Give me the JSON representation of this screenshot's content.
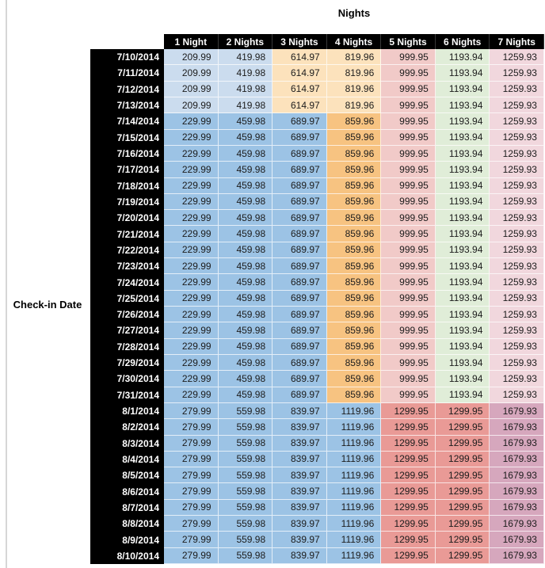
{
  "title": "Nights",
  "row_axis_label": "Check-in Date",
  "columns": [
    "1 Night",
    "2 Nights",
    "3 Nights",
    "4 Nights",
    "5 Nights",
    "6 Nights",
    "7 Nights"
  ],
  "palette": {
    "header_bg": "#000000",
    "header_text": "#ffffff",
    "value_text": "#1c1c1c",
    "light_blue": "#CBDCEE",
    "medium_blue": "#9CC3E5",
    "light_orange": "#FCE2BC",
    "medium_orange": "#F7C381",
    "light_red": "#F1CAC8",
    "medium_red": "#E99A96",
    "light_green": "#E0EDD8",
    "light_pink": "#F1D7DD",
    "mauve": "#D6A7BD"
  },
  "bands": {
    "opening": [
      "light_blue",
      "light_blue",
      "light_orange",
      "light_orange",
      "light_red",
      "light_green",
      "light_pink"
    ],
    "peak_july": [
      "medium_blue",
      "medium_blue",
      "medium_blue",
      "medium_orange",
      "light_red",
      "light_green",
      "light_pink"
    ],
    "august": [
      "medium_blue",
      "medium_blue",
      "medium_blue",
      "medium_blue",
      "medium_red",
      "medium_red",
      "mauve"
    ]
  },
  "rows": [
    {
      "date": "7/10/2014",
      "band": "opening",
      "values": [
        "209.99",
        "419.98",
        "614.97",
        "819.96",
        "999.95",
        "1193.94",
        "1259.93"
      ]
    },
    {
      "date": "7/11/2014",
      "band": "opening",
      "values": [
        "209.99",
        "419.98",
        "614.97",
        "819.96",
        "999.95",
        "1193.94",
        "1259.93"
      ]
    },
    {
      "date": "7/12/2014",
      "band": "opening",
      "values": [
        "209.99",
        "419.98",
        "614.97",
        "819.96",
        "999.95",
        "1193.94",
        "1259.93"
      ]
    },
    {
      "date": "7/13/2014",
      "band": "opening",
      "values": [
        "209.99",
        "419.98",
        "614.97",
        "819.96",
        "999.95",
        "1193.94",
        "1259.93"
      ]
    },
    {
      "date": "7/14/2014",
      "band": "peak_july",
      "values": [
        "229.99",
        "459.98",
        "689.97",
        "859.96",
        "999.95",
        "1193.94",
        "1259.93"
      ]
    },
    {
      "date": "7/15/2014",
      "band": "peak_july",
      "values": [
        "229.99",
        "459.98",
        "689.97",
        "859.96",
        "999.95",
        "1193.94",
        "1259.93"
      ]
    },
    {
      "date": "7/16/2014",
      "band": "peak_july",
      "values": [
        "229.99",
        "459.98",
        "689.97",
        "859.96",
        "999.95",
        "1193.94",
        "1259.93"
      ]
    },
    {
      "date": "7/17/2014",
      "band": "peak_july",
      "values": [
        "229.99",
        "459.98",
        "689.97",
        "859.96",
        "999.95",
        "1193.94",
        "1259.93"
      ]
    },
    {
      "date": "7/18/2014",
      "band": "peak_july",
      "values": [
        "229.99",
        "459.98",
        "689.97",
        "859.96",
        "999.95",
        "1193.94",
        "1259.93"
      ]
    },
    {
      "date": "7/19/2014",
      "band": "peak_july",
      "values": [
        "229.99",
        "459.98",
        "689.97",
        "859.96",
        "999.95",
        "1193.94",
        "1259.93"
      ]
    },
    {
      "date": "7/20/2014",
      "band": "peak_july",
      "values": [
        "229.99",
        "459.98",
        "689.97",
        "859.96",
        "999.95",
        "1193.94",
        "1259.93"
      ]
    },
    {
      "date": "7/21/2014",
      "band": "peak_july",
      "values": [
        "229.99",
        "459.98",
        "689.97",
        "859.96",
        "999.95",
        "1193.94",
        "1259.93"
      ]
    },
    {
      "date": "7/22/2014",
      "band": "peak_july",
      "values": [
        "229.99",
        "459.98",
        "689.97",
        "859.96",
        "999.95",
        "1193.94",
        "1259.93"
      ]
    },
    {
      "date": "7/23/2014",
      "band": "peak_july",
      "values": [
        "229.99",
        "459.98",
        "689.97",
        "859.96",
        "999.95",
        "1193.94",
        "1259.93"
      ]
    },
    {
      "date": "7/24/2014",
      "band": "peak_july",
      "values": [
        "229.99",
        "459.98",
        "689.97",
        "859.96",
        "999.95",
        "1193.94",
        "1259.93"
      ]
    },
    {
      "date": "7/25/2014",
      "band": "peak_july",
      "values": [
        "229.99",
        "459.98",
        "689.97",
        "859.96",
        "999.95",
        "1193.94",
        "1259.93"
      ]
    },
    {
      "date": "7/26/2014",
      "band": "peak_july",
      "values": [
        "229.99",
        "459.98",
        "689.97",
        "859.96",
        "999.95",
        "1193.94",
        "1259.93"
      ]
    },
    {
      "date": "7/27/2014",
      "band": "peak_july",
      "values": [
        "229.99",
        "459.98",
        "689.97",
        "859.96",
        "999.95",
        "1193.94",
        "1259.93"
      ]
    },
    {
      "date": "7/28/2014",
      "band": "peak_july",
      "values": [
        "229.99",
        "459.98",
        "689.97",
        "859.96",
        "999.95",
        "1193.94",
        "1259.93"
      ]
    },
    {
      "date": "7/29/2014",
      "band": "peak_july",
      "values": [
        "229.99",
        "459.98",
        "689.97",
        "859.96",
        "999.95",
        "1193.94",
        "1259.93"
      ]
    },
    {
      "date": "7/30/2014",
      "band": "peak_july",
      "values": [
        "229.99",
        "459.98",
        "689.97",
        "859.96",
        "999.95",
        "1193.94",
        "1259.93"
      ]
    },
    {
      "date": "7/31/2014",
      "band": "peak_july",
      "values": [
        "229.99",
        "459.98",
        "689.97",
        "859.96",
        "999.95",
        "1193.94",
        "1259.93"
      ]
    },
    {
      "date": "8/1/2014",
      "band": "august",
      "values": [
        "279.99",
        "559.98",
        "839.97",
        "1119.96",
        "1299.95",
        "1299.95",
        "1679.93"
      ]
    },
    {
      "date": "8/2/2014",
      "band": "august",
      "values": [
        "279.99",
        "559.98",
        "839.97",
        "1119.96",
        "1299.95",
        "1299.95",
        "1679.93"
      ]
    },
    {
      "date": "8/3/2014",
      "band": "august",
      "values": [
        "279.99",
        "559.98",
        "839.97",
        "1119.96",
        "1299.95",
        "1299.95",
        "1679.93"
      ]
    },
    {
      "date": "8/4/2014",
      "band": "august",
      "values": [
        "279.99",
        "559.98",
        "839.97",
        "1119.96",
        "1299.95",
        "1299.95",
        "1679.93"
      ]
    },
    {
      "date": "8/5/2014",
      "band": "august",
      "values": [
        "279.99",
        "559.98",
        "839.97",
        "1119.96",
        "1299.95",
        "1299.95",
        "1679.93"
      ]
    },
    {
      "date": "8/6/2014",
      "band": "august",
      "values": [
        "279.99",
        "559.98",
        "839.97",
        "1119.96",
        "1299.95",
        "1299.95",
        "1679.93"
      ]
    },
    {
      "date": "8/7/2014",
      "band": "august",
      "values": [
        "279.99",
        "559.98",
        "839.97",
        "1119.96",
        "1299.95",
        "1299.95",
        "1679.93"
      ]
    },
    {
      "date": "8/8/2014",
      "band": "august",
      "values": [
        "279.99",
        "559.98",
        "839.97",
        "1119.96",
        "1299.95",
        "1299.95",
        "1679.93"
      ]
    },
    {
      "date": "8/9/2014",
      "band": "august",
      "values": [
        "279.99",
        "559.98",
        "839.97",
        "1119.96",
        "1299.95",
        "1299.95",
        "1679.93"
      ]
    },
    {
      "date": "8/10/2014",
      "band": "august",
      "values": [
        "279.99",
        "559.98",
        "839.97",
        "1119.96",
        "1299.95",
        "1299.95",
        "1679.93"
      ]
    }
  ]
}
